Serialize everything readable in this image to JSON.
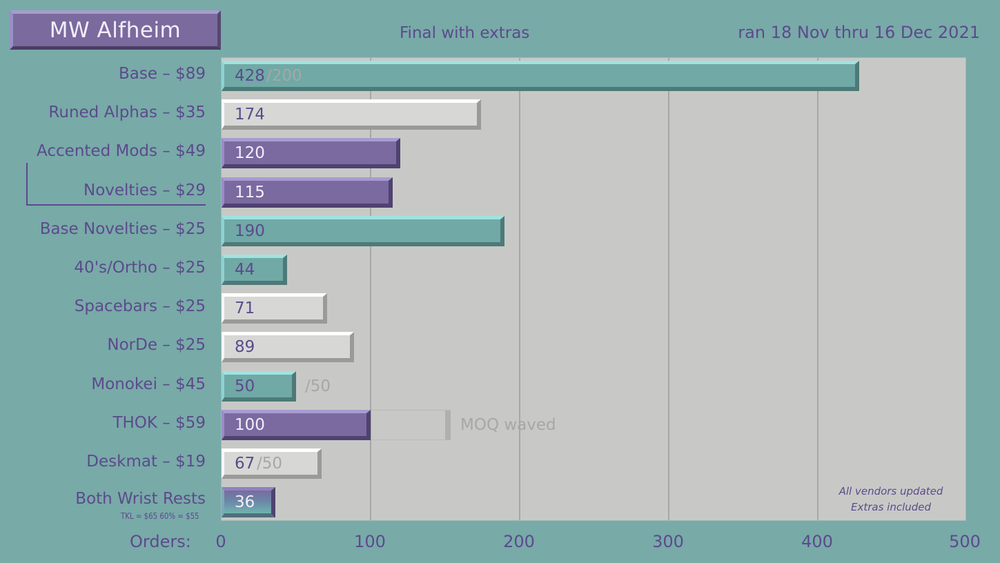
{
  "title": "MW Alfheim",
  "subtitle": "Final with extras",
  "date_range": "ran 18 Nov thru 16 Dec 2021",
  "axis_label": "Orders:",
  "vendor_note": [
    "All vendors updated",
    "Extras included"
  ],
  "wrist_note": "TKL = $65     60% = $55",
  "colors": {
    "background": "#78aaa8",
    "plot": "#c8c9c6",
    "teal": "#70a9a6",
    "purple": "#7a6aa0",
    "white": "#d7d8d5",
    "text": "#5c4a8c"
  },
  "chart_data": {
    "type": "bar",
    "orientation": "horizontal",
    "xlim": [
      0,
      500
    ],
    "xticks": [
      0,
      100,
      200,
      300,
      400,
      500
    ],
    "grid": true,
    "categories": [
      "Base – $89",
      "Runed Alphas – $35",
      "Accented Mods – $49",
      "Novelties – $29",
      "Base Novelties – $25",
      "40's/Ortho – $25",
      "Spacebars – $25",
      "NorDe – $25",
      "Monokei – $45",
      "THOK – $59",
      "Deskmat – $19",
      "Both Wrist Rests"
    ],
    "values": [
      428,
      174,
      120,
      115,
      190,
      44,
      71,
      89,
      50,
      100,
      67,
      36
    ],
    "styles": [
      "teal",
      "white",
      "purple",
      "purple",
      "teal",
      "teal",
      "white",
      "white",
      "teal",
      "purple",
      "white",
      "grad"
    ],
    "moq": [
      "/200",
      "",
      "",
      "",
      "",
      "",
      "",
      "",
      "/50",
      "MOQ waved",
      "/50",
      ""
    ],
    "moq_values": [
      null,
      null,
      null,
      null,
      null,
      null,
      null,
      null,
      null,
      150,
      null,
      null
    ]
  }
}
